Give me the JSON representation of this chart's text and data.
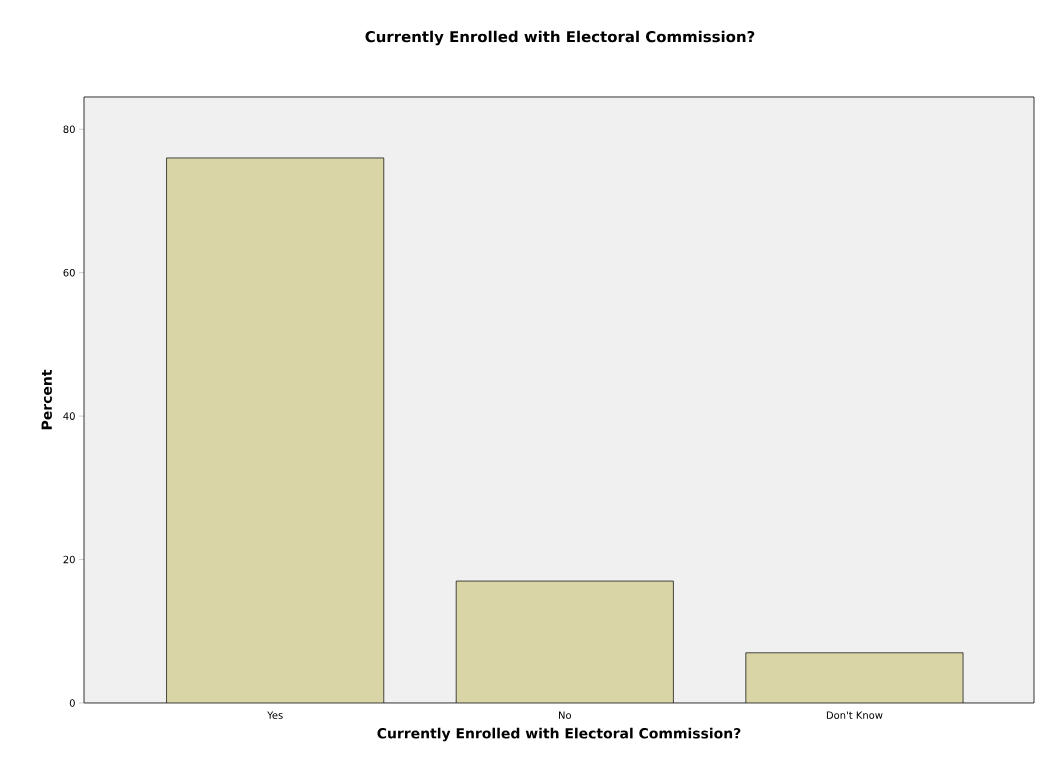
{
  "chart_data": {
    "type": "bar",
    "title": "Currently Enrolled with Electoral Commission?",
    "xlabel": "Currently Enrolled with Electoral Commission?",
    "ylabel": "Percent",
    "categories": [
      "Yes",
      "No",
      "Don't Know"
    ],
    "values": [
      76,
      17,
      7
    ],
    "color": "#d9d5a7",
    "ylim": [
      0,
      84.5
    ],
    "yticks": [
      0,
      20,
      40,
      60,
      80
    ],
    "grid": false
  }
}
